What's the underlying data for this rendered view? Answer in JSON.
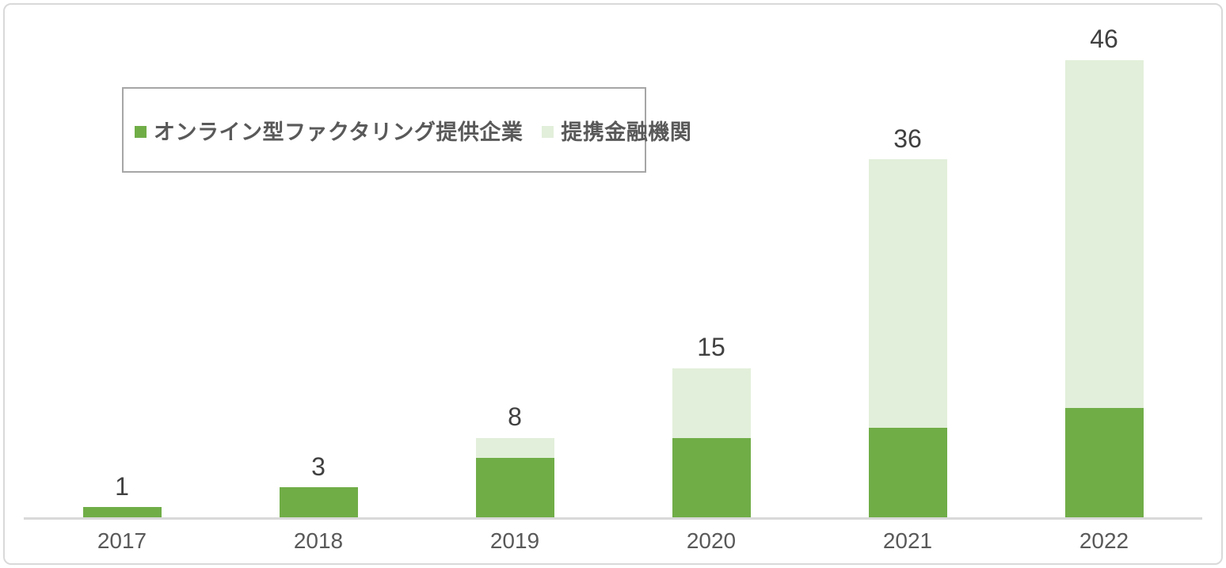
{
  "chart_data": {
    "type": "bar",
    "stacked": true,
    "categories": [
      "2017",
      "2018",
      "2019",
      "2020",
      "2021",
      "2022"
    ],
    "series": [
      {
        "id": "providers",
        "name": "オンライン型ファクタリング提供企業",
        "color": "#70AD47",
        "values": [
          1,
          3,
          6,
          8,
          9,
          11
        ]
      },
      {
        "id": "partners",
        "name": "提携金融機関",
        "color": "#E2EFDA",
        "values": [
          0,
          0,
          2,
          7,
          27,
          35
        ]
      }
    ],
    "totals": [
      1,
      3,
      8,
      15,
      36,
      46
    ],
    "title": "",
    "xlabel": "",
    "ylabel": "",
    "ylim": [
      0,
      46
    ],
    "grid": false,
    "legend_position": "top-left",
    "data_labels": "total-above-bar",
    "colors": {
      "axis_line": "#D9D9D9",
      "frame_border": "#D9D9D9",
      "legend_border": "#A6A6A6",
      "total_label_text": "#404040",
      "axis_label_text": "#595959",
      "legend_text": "#595959",
      "background": "#FFFFFF"
    }
  }
}
